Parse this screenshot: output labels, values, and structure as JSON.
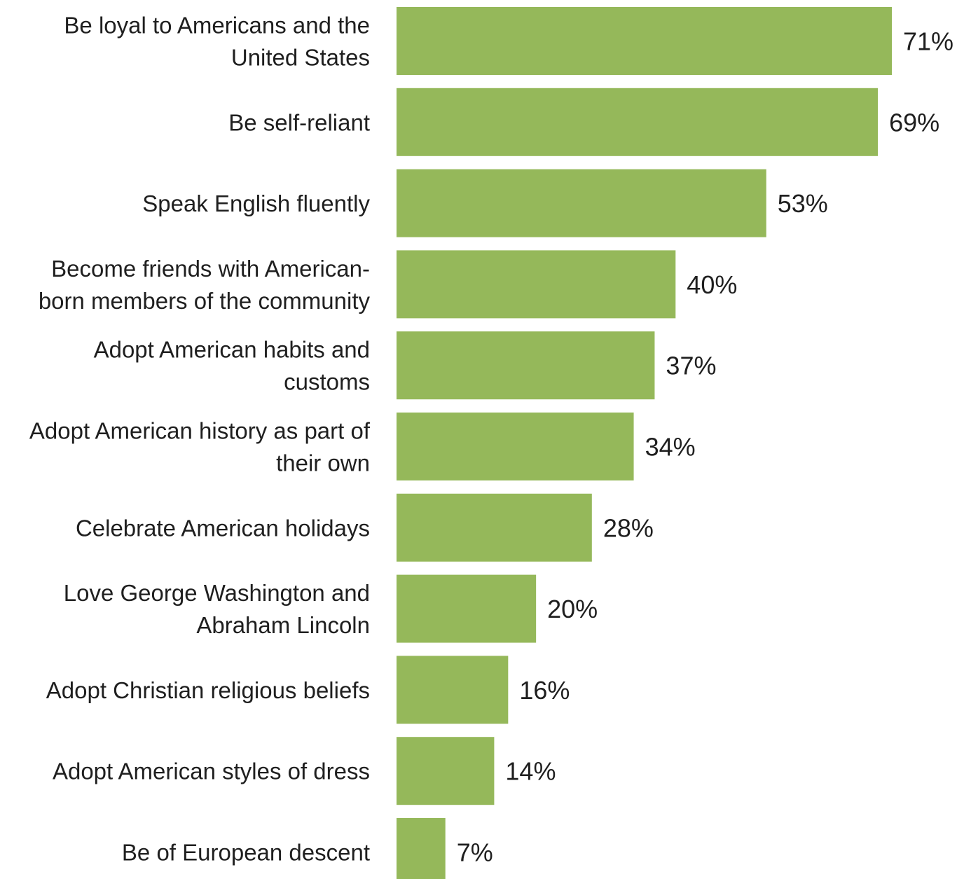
{
  "chart_data": {
    "type": "bar",
    "orientation": "horizontal",
    "categories": [
      [
        "Be loyal to Americans and the",
        "United States"
      ],
      [
        "Be self-reliant"
      ],
      [
        "Speak English fluently"
      ],
      [
        "Become friends with American-",
        "born members of the community"
      ],
      [
        "Adopt American habits and",
        "customs"
      ],
      [
        "Adopt American history as part of",
        "their own"
      ],
      [
        "Celebrate American holidays"
      ],
      [
        "Love George Washington and",
        "Abraham Lincoln"
      ],
      [
        "Adopt Christian religious beliefs"
      ],
      [
        "Adopt American styles of dress"
      ],
      [
        "Be of European descent"
      ]
    ],
    "values": [
      71,
      69,
      53,
      40,
      37,
      34,
      28,
      20,
      16,
      14,
      7
    ],
    "value_labels": [
      "71%",
      "69%",
      "53%",
      "40%",
      "37%",
      "34%",
      "28%",
      "20%",
      "16%",
      "14%",
      "7%"
    ],
    "unit": "%",
    "bar_color": "#95b85a",
    "title": "",
    "xlabel": "",
    "ylabel": "",
    "xlim": [
      0,
      71
    ],
    "grid": false,
    "legend": "none"
  }
}
